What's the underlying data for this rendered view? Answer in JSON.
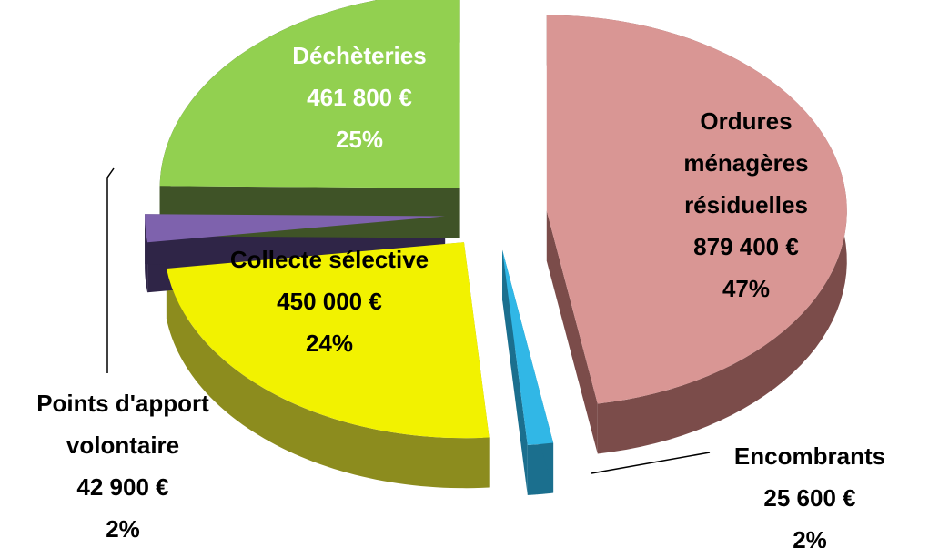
{
  "chart_data": {
    "type": "pie",
    "categories": [
      "Ordures ménagères résiduelles",
      "Encombrants",
      "Collecte sélective",
      "Points d'apport volontaire",
      "Déchèteries"
    ],
    "values": [
      879400,
      25600,
      450000,
      42900,
      461800
    ],
    "value_labels": [
      "879 400 €",
      "25 600 €",
      "450 000 €",
      "42 900 €",
      "461 800 €"
    ],
    "share_labels": [
      "47%",
      "2%",
      "24%",
      "2%",
      "25%"
    ],
    "colors": [
      "#d99694",
      "#31b7e6",
      "#f2f200",
      "#7e62ad",
      "#92d050"
    ],
    "side_colors": [
      "#7b4c4a",
      "#1b6f8e",
      "#8c8c1e",
      "#2f2547",
      "#3f5327"
    ]
  }
}
